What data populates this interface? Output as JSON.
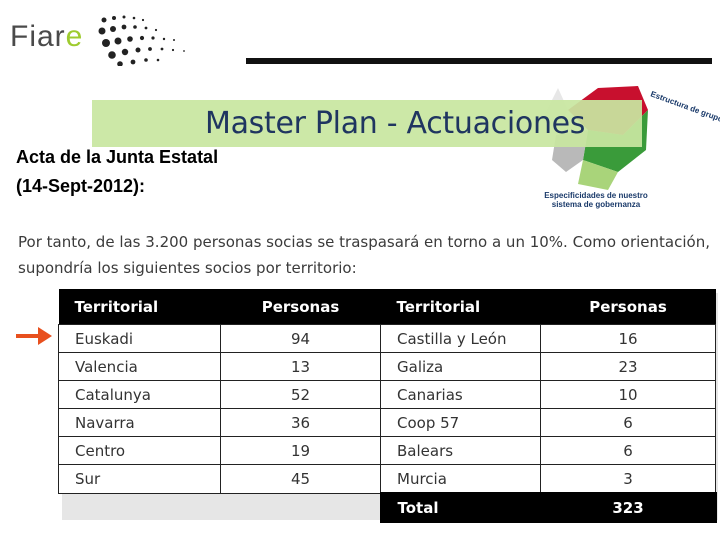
{
  "logo": {
    "text_main": "Fiar",
    "text_accent": "e"
  },
  "title": "Master Plan - Actuaciones",
  "subtitle_lines": [
    "Acta de la Junta Estatal",
    "(14-Sept-2012):"
  ],
  "graphic": {
    "arc_text": "Estructura de grupos locales",
    "caption_lines": [
      "Especificidades de nuestro",
      "sistema de gobernanza"
    ],
    "colors": {
      "red": "#c8102e",
      "green": "#3a9b3a",
      "light_green": "#a9d47a",
      "grey": "#b9b9b9"
    }
  },
  "paragraph_lines": [
    "Por tanto, de las 3.200 personas socias se traspasará en torno a un 10%. Como orientación,",
    "supondría los siguientes socios por territorio:"
  ],
  "table": {
    "headers": [
      "Territorial",
      "Personas",
      "Territorial",
      "Personas"
    ],
    "rows": [
      [
        "Euskadi",
        "94",
        "Castilla y León",
        "16"
      ],
      [
        "Valencia",
        "13",
        "Galiza",
        "23"
      ],
      [
        "Catalunya",
        "52",
        "Canarias",
        "10"
      ],
      [
        "Navarra",
        "36",
        "Coop 57",
        "6"
      ],
      [
        "Centro",
        "19",
        "Balears",
        "6"
      ],
      [
        "Sur",
        "45",
        "Murcia",
        "3"
      ]
    ],
    "total_label": "Total",
    "total_value": "323",
    "highlighted_row": "Euskadi"
  },
  "colors": {
    "title": "#1f3560",
    "title_box": "#c8e6a0",
    "arrow": "#e8501e",
    "logo_accent": "#9ecb2f"
  }
}
